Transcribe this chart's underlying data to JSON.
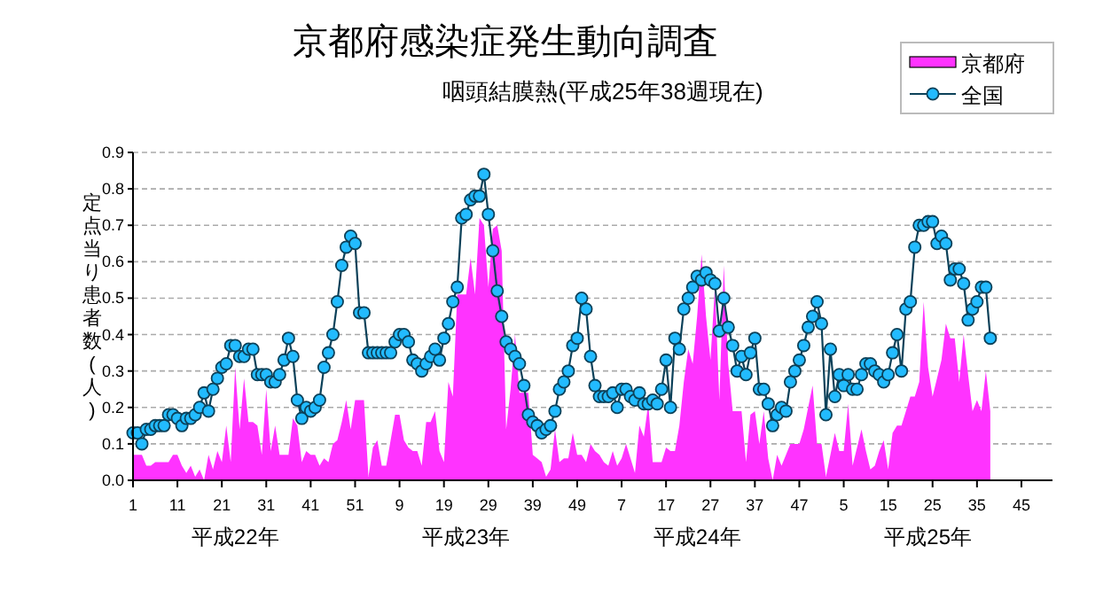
{
  "chart_data": {
    "type": "line",
    "title": "京都府感染症発生動向調査",
    "subtitle": "咽頭結膜熱(平成25年38週現在)",
    "ylabel": "定点当り患者数(人)",
    "annotations": [
      "平成22年",
      "平成23年",
      "平成24年",
      "平成25年"
    ],
    "categories": [
      "1",
      null,
      null,
      null,
      null,
      null,
      null,
      null,
      null,
      null,
      "11",
      null,
      null,
      null,
      null,
      null,
      null,
      null,
      null,
      null,
      "21",
      null,
      null,
      null,
      null,
      null,
      null,
      null,
      null,
      null,
      "31",
      null,
      null,
      null,
      null,
      null,
      null,
      null,
      null,
      null,
      "41",
      null,
      null,
      null,
      null,
      null,
      null,
      null,
      null,
      null,
      "51",
      null,
      null,
      null,
      null,
      null,
      null,
      null,
      null,
      null,
      "9",
      null,
      null,
      null,
      null,
      null,
      null,
      null,
      null,
      null,
      "19",
      null,
      null,
      null,
      null,
      null,
      null,
      null,
      null,
      null,
      "29",
      null,
      null,
      null,
      null,
      null,
      null,
      null,
      null,
      null,
      "39",
      null,
      null,
      null,
      null,
      null,
      null,
      null,
      null,
      null,
      "49",
      null,
      null,
      null,
      null,
      null,
      null,
      null,
      null,
      null,
      "7",
      null,
      null,
      null,
      null,
      null,
      null,
      null,
      null,
      null,
      "17",
      null,
      null,
      null,
      null,
      null,
      null,
      null,
      null,
      null,
      "27",
      null,
      null,
      null,
      null,
      null,
      null,
      null,
      null,
      null,
      "37",
      null,
      null,
      null,
      null,
      null,
      null,
      null,
      null,
      null,
      "47",
      null,
      null,
      null,
      null,
      null,
      null,
      null,
      null,
      null,
      "5",
      null,
      null,
      null,
      null,
      null,
      null,
      null,
      null,
      null,
      "15",
      null,
      null,
      null,
      null,
      null,
      null,
      null,
      null,
      null,
      "25",
      null,
      null,
      null,
      null,
      null,
      null,
      null,
      null,
      null,
      "35",
      null,
      null,
      null,
      null,
      null,
      null,
      null,
      null,
      null,
      "45",
      null,
      null,
      null,
      null,
      null,
      null,
      null
    ],
    "ylim": [
      0,
      0.9
    ],
    "yticks": [
      {
        "value": 0,
        "label": "0.0"
      },
      {
        "value": 0.1,
        "label": "0.1"
      },
      {
        "value": 0.2,
        "label": "0.2"
      },
      {
        "value": 0.3,
        "label": "0.3"
      },
      {
        "value": 0.4,
        "label": "0.4"
      },
      {
        "value": 0.5,
        "label": "0.5"
      },
      {
        "value": 0.6,
        "label": "0.6"
      },
      {
        "value": 0.7,
        "label": "0.7"
      },
      {
        "value": 0.8,
        "label": "0.8"
      },
      {
        "value": 0.9,
        "label": "0.9"
      }
    ],
    "grid": "y",
    "legend": "top right",
    "series": [
      {
        "name": "京都府",
        "type": "area",
        "color": "#ff33ff",
        "values": [
          0.07,
          0.07,
          0.07,
          0.04,
          0.04,
          0.05,
          0.05,
          0.05,
          0.05,
          0.07,
          0.07,
          0.04,
          0.02,
          0.04,
          0.01,
          0.03,
          0.0,
          0.07,
          0.03,
          0.08,
          0.05,
          0.15,
          0.05,
          0.31,
          0.14,
          0.28,
          0.16,
          0.16,
          0.15,
          0.07,
          0.25,
          0.08,
          0.15,
          0.07,
          0.07,
          0.07,
          0.17,
          0.15,
          0.05,
          0.08,
          0.07,
          0.07,
          0.04,
          0.06,
          0.05,
          0.1,
          0.11,
          0.16,
          0.22,
          0.14,
          0.22,
          0.22,
          0.22,
          0.01,
          0.09,
          0.11,
          0.04,
          0.04,
          0.11,
          0.18,
          0.18,
          0.11,
          0.09,
          0.08,
          0.08,
          0.04,
          0.16,
          0.16,
          0.19,
          0.08,
          0.05,
          0.27,
          0.23,
          0.51,
          0.51,
          0.51,
          0.61,
          0.51,
          0.72,
          0.7,
          0.53,
          0.69,
          0.7,
          0.63,
          0.14,
          0.25,
          0.4,
          0.24,
          0.24,
          0.24,
          0.07,
          0.06,
          0.05,
          0.01,
          0.03,
          0.14,
          0.05,
          0.06,
          0.06,
          0.13,
          0.07,
          0.07,
          0.05,
          0.1,
          0.08,
          0.07,
          0.05,
          0.04,
          0.08,
          0.04,
          0.06,
          0.1,
          0.06,
          0.02,
          0.15,
          0.12,
          0.21,
          0.05,
          0.05,
          0.05,
          0.09,
          0.08,
          0.08,
          0.15,
          0.27,
          0.36,
          0.32,
          0.45,
          0.62,
          0.45,
          0.33,
          0.53,
          0.22,
          0.59,
          0.32,
          0.19,
          0.19,
          0.19,
          0.05,
          0.18,
          0.19,
          0.1,
          0.19,
          0.06,
          0.0,
          0.07,
          0.04,
          0.07,
          0.1,
          0.1,
          0.1,
          0.14,
          0.2,
          0.26,
          0.1,
          0.1,
          0.01,
          0.07,
          0.13,
          0.08,
          0.08,
          0.21,
          0.04,
          0.09,
          0.14,
          0.08,
          0.03,
          0.04,
          0.08,
          0.11,
          0.03,
          0.13,
          0.15,
          0.15,
          0.19,
          0.23,
          0.23,
          0.27,
          0.49,
          0.31,
          0.23,
          0.28,
          0.33,
          0.43,
          0.39,
          0.39,
          0.27,
          0.4,
          0.29,
          0.19,
          0.22,
          0.19,
          0.3,
          0.19,
          null,
          null,
          null,
          null,
          null,
          null,
          null,
          null,
          null,
          null,
          null,
          null,
          null,
          null
        ]
      },
      {
        "name": "全国",
        "color": "#22bbff",
        "marker": "circle",
        "values": [
          0.13,
          0.13,
          0.1,
          0.14,
          0.14,
          0.15,
          0.15,
          0.15,
          0.18,
          0.18,
          0.17,
          0.15,
          0.17,
          0.17,
          0.18,
          0.2,
          0.24,
          0.19,
          0.25,
          0.28,
          0.31,
          0.32,
          0.37,
          0.37,
          0.34,
          0.34,
          0.36,
          0.36,
          0.29,
          0.29,
          0.29,
          0.27,
          0.27,
          0.29,
          0.33,
          0.39,
          0.34,
          0.22,
          0.17,
          0.2,
          0.19,
          0.2,
          0.22,
          0.31,
          0.35,
          0.4,
          0.49,
          0.59,
          0.64,
          0.67,
          0.65,
          0.46,
          0.46,
          0.35,
          0.35,
          0.35,
          0.35,
          0.35,
          0.35,
          0.38,
          0.4,
          0.4,
          0.38,
          0.33,
          0.32,
          0.3,
          0.32,
          0.34,
          0.36,
          0.33,
          0.39,
          0.43,
          0.49,
          0.53,
          0.72,
          0.73,
          0.77,
          0.78,
          0.78,
          0.84,
          0.73,
          0.63,
          0.52,
          0.45,
          0.38,
          0.36,
          0.34,
          0.32,
          0.26,
          0.18,
          0.16,
          0.15,
          0.13,
          0.14,
          0.15,
          0.19,
          0.25,
          0.27,
          0.3,
          0.37,
          0.39,
          0.5,
          0.47,
          0.34,
          0.26,
          0.23,
          0.23,
          0.23,
          0.24,
          0.2,
          0.25,
          0.25,
          0.23,
          0.22,
          0.24,
          0.21,
          0.21,
          0.22,
          0.21,
          0.25,
          0.33,
          0.2,
          0.39,
          0.36,
          0.47,
          0.5,
          0.53,
          0.56,
          0.55,
          0.57,
          0.55,
          0.54,
          0.41,
          0.5,
          0.42,
          0.37,
          0.3,
          0.34,
          0.29,
          0.35,
          0.39,
          0.25,
          0.25,
          0.21,
          0.15,
          0.18,
          0.2,
          0.19,
          0.27,
          0.3,
          0.33,
          0.37,
          0.42,
          0.45,
          0.49,
          0.43,
          0.18,
          0.36,
          0.23,
          0.29,
          0.26,
          0.29,
          0.25,
          0.25,
          0.29,
          0.32,
          0.32,
          0.3,
          0.29,
          0.27,
          0.29,
          0.35,
          0.4,
          0.3,
          0.47,
          0.49,
          0.64,
          0.7,
          0.7,
          0.71,
          0.71,
          0.65,
          0.67,
          0.65,
          0.55,
          0.58,
          0.58,
          0.54,
          0.44,
          0.47,
          0.49,
          0.53,
          0.53,
          0.39,
          null,
          null,
          null,
          null,
          null,
          null,
          null,
          null,
          null,
          null,
          null,
          null,
          null,
          null
        ]
      }
    ]
  }
}
